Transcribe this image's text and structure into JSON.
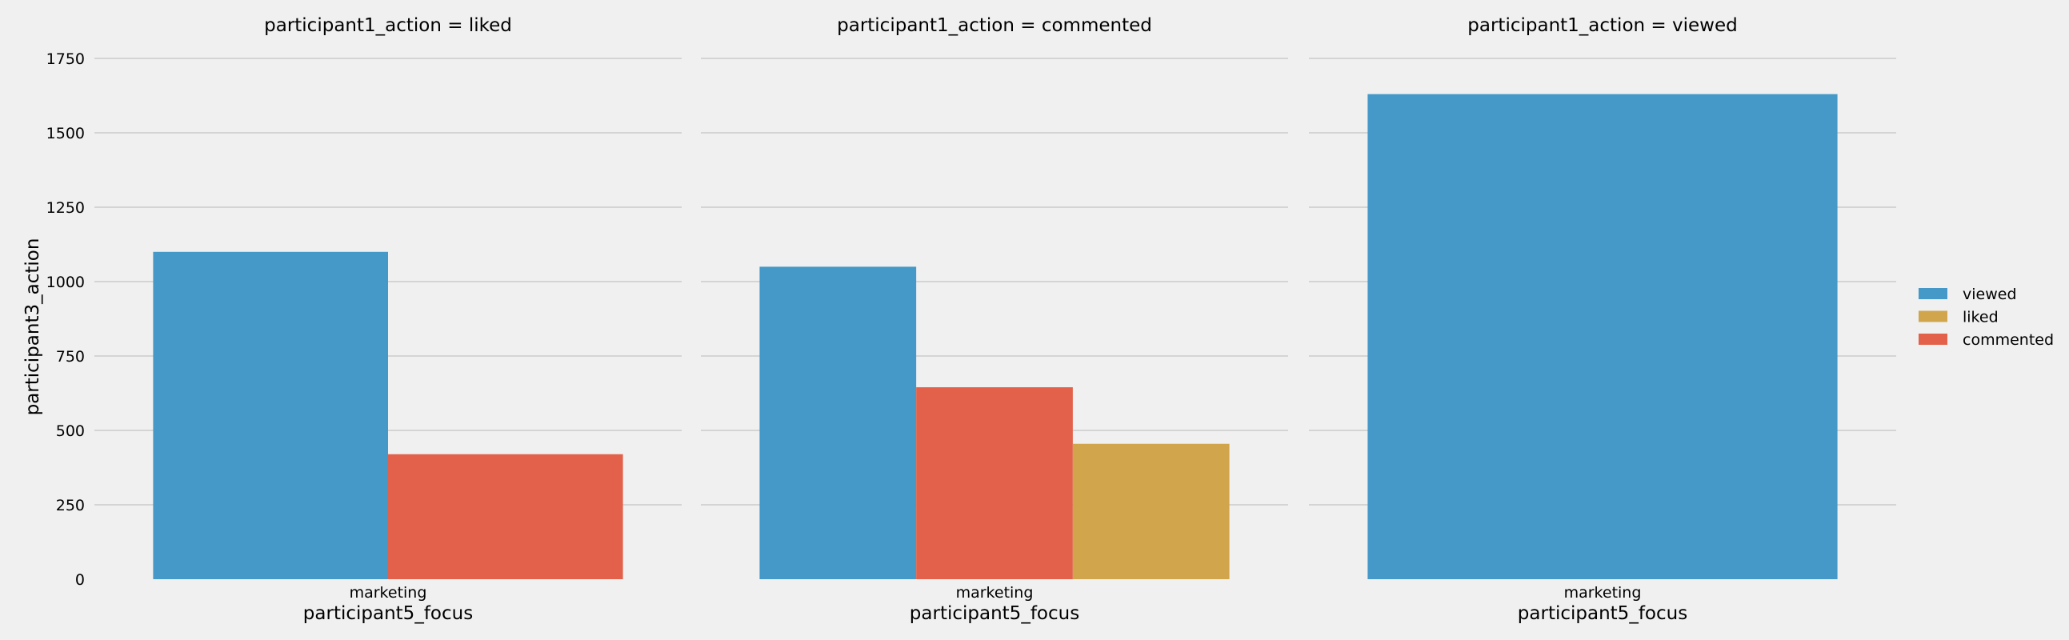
{
  "chart_data": {
    "type": "bar",
    "facet_variable": "participant1_action",
    "panels": [
      {
        "title": "participant1_action = liked",
        "categories": [
          "marketing"
        ],
        "bars": [
          {
            "hue": "viewed",
            "value": 1100
          },
          {
            "hue": "commented",
            "value": 420
          }
        ]
      },
      {
        "title": "participant1_action = commented",
        "categories": [
          "marketing"
        ],
        "bars": [
          {
            "hue": "viewed",
            "value": 1050
          },
          {
            "hue": "commented",
            "value": 645
          },
          {
            "hue": "liked",
            "value": 455
          }
        ]
      },
      {
        "title": "participant1_action = viewed",
        "categories": [
          "marketing"
        ],
        "bars": [
          {
            "hue": "viewed",
            "value": 1630
          }
        ]
      }
    ],
    "xlabel": "participant5_focus",
    "ylabel": "participant3_action",
    "ylim": [
      0,
      1750
    ],
    "yticks": [
      0,
      250,
      500,
      750,
      1000,
      1250,
      1500,
      1750
    ],
    "grid": true,
    "legend": {
      "placement": "right",
      "entries": [
        {
          "label": "viewed",
          "color": "#4499c8"
        },
        {
          "label": "liked",
          "color": "#d1a54c"
        },
        {
          "label": "commented",
          "color": "#e3614a"
        }
      ]
    }
  }
}
